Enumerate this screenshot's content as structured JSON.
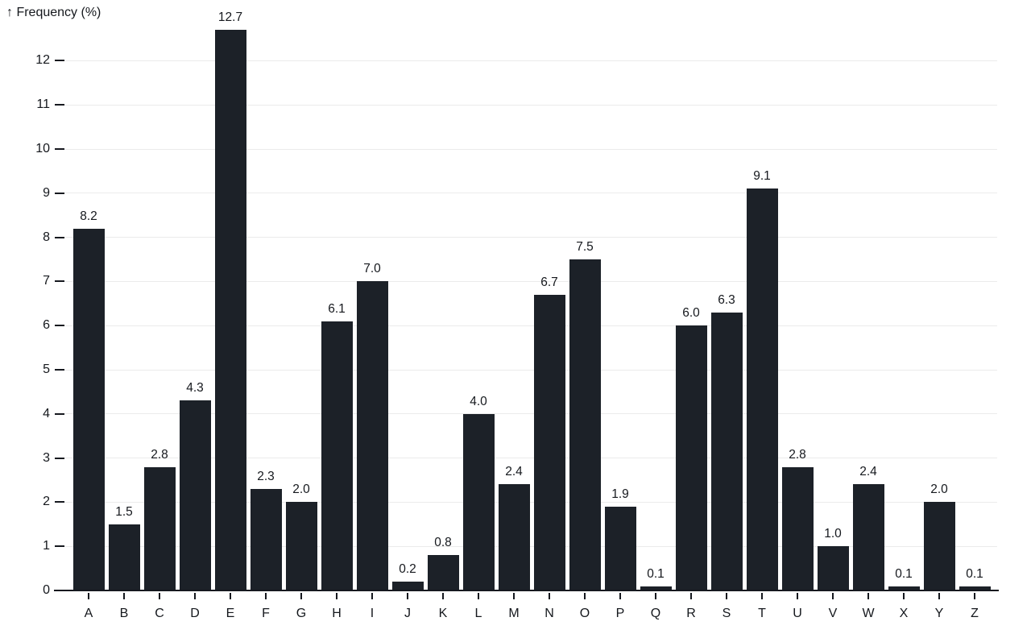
{
  "chart_data": {
    "type": "bar",
    "title": "↑ Frequency (%)",
    "ylabel": "Frequency (%)",
    "xlabel": "",
    "categories": [
      "A",
      "B",
      "C",
      "D",
      "E",
      "F",
      "G",
      "H",
      "I",
      "J",
      "K",
      "L",
      "M",
      "N",
      "O",
      "P",
      "Q",
      "R",
      "S",
      "T",
      "U",
      "V",
      "W",
      "X",
      "Y",
      "Z"
    ],
    "values": [
      8.2,
      1.5,
      2.8,
      4.3,
      12.7,
      2.3,
      2.0,
      6.1,
      7.0,
      0.2,
      0.8,
      4.0,
      2.4,
      6.7,
      7.5,
      1.9,
      0.1,
      6.0,
      6.3,
      9.1,
      2.8,
      1.0,
      2.4,
      0.1,
      2.0,
      0.1
    ],
    "value_labels": [
      "8.2",
      "1.5",
      "2.8",
      "4.3",
      "12.7",
      "2.3",
      "2.0",
      "6.1",
      "7.0",
      "0.2",
      "0.8",
      "4.0",
      "2.4",
      "6.7",
      "7.5",
      "1.9",
      "0.1",
      "6.0",
      "6.3",
      "9.1",
      "2.8",
      "1.0",
      "2.4",
      "0.1",
      "2.0",
      "0.1"
    ],
    "yticks": [
      0,
      1,
      2,
      3,
      4,
      5,
      6,
      7,
      8,
      9,
      10,
      11,
      12
    ],
    "ylim": [
      0,
      12.7
    ],
    "grid": true,
    "legend": false,
    "colors": {
      "bar": "#1c2128",
      "grid": "#ebebeb",
      "axis": "#16191f",
      "text": "#15181d",
      "background": "#ffffff"
    }
  }
}
